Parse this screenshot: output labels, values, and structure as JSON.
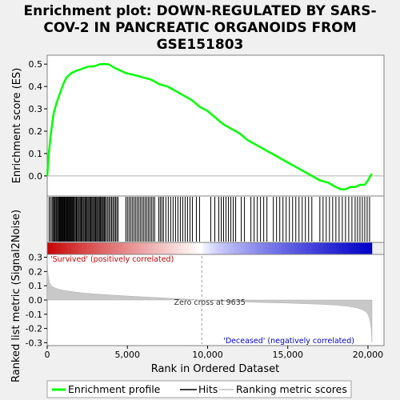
{
  "chart_data": {
    "type": "line",
    "title_lines": [
      "Enrichment plot: DOWN-REGULATED BY SARS-",
      "COV-2 IN PANCREATIC ORGANOIDS FROM",
      "GSE151803"
    ],
    "top_panel": {
      "ylabel": "Enrichment score (ES)",
      "ylim": [
        -0.09,
        0.54
      ],
      "yticks": [
        "0.0",
        "0.1",
        "0.2",
        "0.3",
        "0.4",
        "0.5"
      ],
      "series": {
        "name": "Enrichment profile",
        "color": "#00ff00",
        "x": [
          0,
          100,
          250,
          400,
          600,
          800,
          1000,
          1200,
          1500,
          1800,
          2200,
          2600,
          2900,
          3300,
          3800,
          4300,
          4900,
          5500,
          6000,
          6500,
          7000,
          7500,
          8000,
          8500,
          9000,
          9500,
          10000,
          10500,
          11000,
          11500,
          12000,
          12500,
          13000,
          13500,
          14000,
          14500,
          15000,
          15500,
          16000,
          16500,
          17000,
          17500,
          18000,
          18300,
          18600,
          18900,
          19200,
          19500,
          19800,
          20000,
          20150,
          20250
        ],
        "values": [
          0.0,
          0.1,
          0.2,
          0.28,
          0.33,
          0.37,
          0.41,
          0.44,
          0.46,
          0.47,
          0.48,
          0.49,
          0.49,
          0.5,
          0.5,
          0.48,
          0.46,
          0.45,
          0.44,
          0.43,
          0.41,
          0.4,
          0.38,
          0.36,
          0.34,
          0.31,
          0.29,
          0.26,
          0.23,
          0.21,
          0.19,
          0.16,
          0.14,
          0.12,
          0.1,
          0.08,
          0.06,
          0.04,
          0.02,
          0.0,
          -0.02,
          -0.03,
          -0.05,
          -0.06,
          -0.06,
          -0.05,
          -0.05,
          -0.04,
          -0.04,
          -0.02,
          0.0,
          0.01
        ]
      }
    },
    "hits_panel": {
      "hit_positions": [
        120,
        210,
        300,
        360,
        420,
        480,
        540,
        590,
        640,
        700,
        750,
        800,
        850,
        900,
        950,
        1000,
        1050,
        1090,
        1130,
        1180,
        1220,
        1260,
        1300,
        1350,
        1400,
        1450,
        1500,
        1550,
        1600,
        1650,
        1700,
        1760,
        1820,
        1880,
        1940,
        2000,
        2060,
        2120,
        2180,
        2240,
        2300,
        2360,
        2420,
        2480,
        2540,
        2600,
        2660,
        2720,
        2780,
        2840,
        2900,
        2960,
        3020,
        3080,
        3140,
        3200,
        3260,
        3320,
        3380,
        3440,
        3500,
        3560,
        3620,
        3700,
        3780,
        3860,
        3940,
        4020,
        4100,
        4180,
        4260,
        4340,
        4420,
        4900,
        5000,
        5100,
        5200,
        5300,
        5400,
        5500,
        5600,
        5700,
        5800,
        5900,
        6000,
        6100,
        6200,
        6300,
        6400,
        6500,
        6600,
        6700,
        6950,
        7050,
        7150,
        7250,
        7400,
        7550,
        7700,
        7850,
        8000,
        8150,
        8300,
        8450,
        8600,
        8750,
        8900,
        9050,
        9300,
        9500,
        10200,
        10450,
        10700,
        10850,
        11000,
        11150,
        11300,
        11450,
        11600,
        11750,
        12100,
        12300,
        12700,
        12900,
        13100,
        13300,
        13500,
        13700,
        14100,
        14300,
        14500,
        14700,
        14900,
        15100,
        15300,
        15500,
        15700,
        15900,
        16100,
        16300,
        16500,
        17000,
        17200,
        17400,
        17600,
        17800,
        18000,
        18200,
        18400,
        18600,
        18800,
        19000,
        19200,
        19350,
        19500,
        19650,
        19800,
        19950,
        20100
      ]
    },
    "bottom_panel": {
      "ylabel": "Ranked list metric (Signal2Noise)",
      "ylim": [
        -0.32,
        0.32
      ],
      "yticks": [
        "-0.3",
        "-0.2",
        "-0.1",
        "0.0",
        "0.1",
        "0.2",
        "0.3"
      ],
      "series": {
        "name": "Ranking metric scores",
        "x": [
          0,
          50,
          150,
          300,
          600,
          1000,
          2000,
          3000,
          4000,
          5000,
          6000,
          7000,
          8000,
          9000,
          9635,
          10000,
          11000,
          12000,
          13000,
          14000,
          15000,
          16000,
          17000,
          18000,
          18800,
          19300,
          19700,
          19950,
          20100,
          20200,
          20250
        ],
        "values": [
          0.3,
          0.18,
          0.12,
          0.095,
          0.08,
          0.068,
          0.052,
          0.042,
          0.035,
          0.028,
          0.022,
          0.016,
          0.01,
          0.004,
          0.0,
          -0.003,
          -0.008,
          -0.012,
          -0.016,
          -0.019,
          -0.022,
          -0.026,
          -0.03,
          -0.036,
          -0.045,
          -0.055,
          -0.07,
          -0.09,
          -0.13,
          -0.2,
          -0.3
        ]
      },
      "zero_cross_rank": 9635,
      "zero_cross_text": "Zero cross at 9635",
      "pos_text": "'Survived' (positively correlated)",
      "neg_text": "'Deceased' (negatively correlated)",
      "pos_color": "#cc0000",
      "neg_color": "#0000cc"
    },
    "xlabel": "Rank in Ordered Dataset",
    "xlim": [
      0,
      21000
    ],
    "xticks": [
      {
        "value": 0,
        "label": "0"
      },
      {
        "value": 5000,
        "label": "5,000"
      },
      {
        "value": 10000,
        "label": "10,000"
      },
      {
        "value": 15000,
        "label": "15,000"
      },
      {
        "value": 20000,
        "label": "20,000"
      }
    ],
    "legend": [
      {
        "label": "Enrichment profile",
        "color": "#00ff00"
      },
      {
        "label": "Hits",
        "color": "#000000"
      },
      {
        "label": "Ranking metric scores",
        "color": "#c0c0c0"
      }
    ]
  }
}
